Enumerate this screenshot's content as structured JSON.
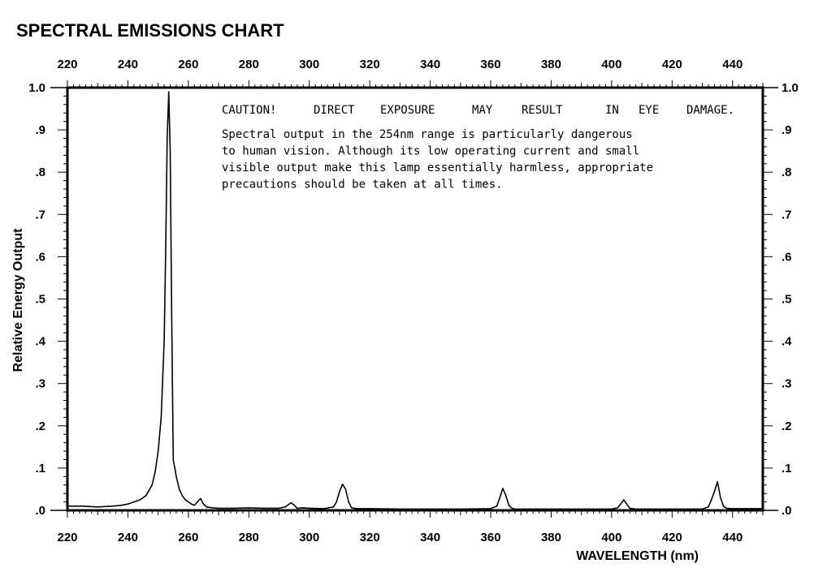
{
  "chart_data": {
    "type": "line",
    "title": "SPECTRAL EMISSIONS CHART",
    "xlabel": "WAVELENGTH (nm)",
    "ylabel": "Relative Energy Output",
    "xlim": [
      220,
      450
    ],
    "ylim": [
      0,
      1.0
    ],
    "x_ticks": [
      220,
      240,
      260,
      280,
      300,
      320,
      340,
      360,
      380,
      400,
      420,
      440
    ],
    "x_tick_labels": [
      "220",
      "240",
      "260",
      "280",
      "300",
      "320",
      "340",
      "360",
      "380",
      "400",
      "420",
      "440"
    ],
    "y_ticks": [
      0,
      0.1,
      0.2,
      0.3,
      0.4,
      0.5,
      0.6,
      0.7,
      0.8,
      0.9,
      1.0
    ],
    "y_tick_labels_left": [
      ".0",
      ".1",
      ".2",
      ".3",
      ".4",
      ".5",
      ".6",
      ".7",
      ".8",
      ".9",
      "1.0"
    ],
    "y_tick_labels_right": [
      ".0",
      ".1",
      ".2",
      ".3",
      ".4",
      ".5",
      ".6",
      ".7",
      ".8",
      ".9",
      "1.0"
    ],
    "grid": false,
    "series": [
      {
        "x": [
          220,
          225,
          230,
          235,
          238,
          240,
          242,
          244,
          246,
          248,
          249,
          250,
          251,
          252,
          252.5,
          253,
          253.5,
          254,
          254.5,
          255,
          256,
          257,
          258,
          259,
          260,
          261,
          262,
          263,
          264,
          265,
          266,
          268,
          270,
          275,
          280,
          285,
          290,
          292,
          294,
          295,
          296,
          298,
          300,
          305,
          308,
          309,
          310,
          311,
          312,
          313,
          314,
          316,
          320,
          330,
          340,
          350,
          360,
          362,
          363,
          364,
          365,
          366,
          367,
          368,
          370,
          380,
          390,
          400,
          402,
          403,
          404,
          405,
          406,
          408,
          410,
          420,
          430,
          432,
          433,
          434,
          435,
          436,
          437,
          438,
          440,
          445,
          450
        ],
        "y": [
          0.01,
          0.01,
          0.008,
          0.01,
          0.012,
          0.015,
          0.02,
          0.025,
          0.035,
          0.06,
          0.09,
          0.14,
          0.22,
          0.4,
          0.62,
          0.88,
          0.99,
          0.85,
          0.45,
          0.12,
          0.08,
          0.05,
          0.035,
          0.025,
          0.02,
          0.015,
          0.012,
          0.02,
          0.028,
          0.015,
          0.008,
          0.006,
          0.005,
          0.005,
          0.006,
          0.005,
          0.005,
          0.008,
          0.018,
          0.012,
          0.005,
          0.006,
          0.005,
          0.004,
          0.008,
          0.02,
          0.045,
          0.062,
          0.05,
          0.02,
          0.006,
          0.004,
          0.004,
          0.003,
          0.003,
          0.003,
          0.004,
          0.01,
          0.03,
          0.052,
          0.035,
          0.012,
          0.005,
          0.003,
          0.003,
          0.003,
          0.003,
          0.003,
          0.006,
          0.015,
          0.025,
          0.015,
          0.005,
          0.003,
          0.003,
          0.003,
          0.003,
          0.008,
          0.025,
          0.045,
          0.068,
          0.03,
          0.01,
          0.005,
          0.004,
          0.004,
          0.004
        ]
      }
    ],
    "annotation": {
      "heading": [
        "CAUTION!",
        "DIRECT",
        "EXPOSURE",
        "MAY",
        "RESULT",
        "IN",
        "EYE",
        "DAMAGE."
      ],
      "lines": [
        "Spectral output in the  254nm  range  is particularly dangerous",
        "to human vision.  Although its  low operating current  and small",
        "visible output make this lamp essentially harmless, appropriate",
        "precautions should be taken at all times."
      ]
    }
  },
  "colors": {
    "ink": "#000000",
    "background": "#ffffff"
  }
}
